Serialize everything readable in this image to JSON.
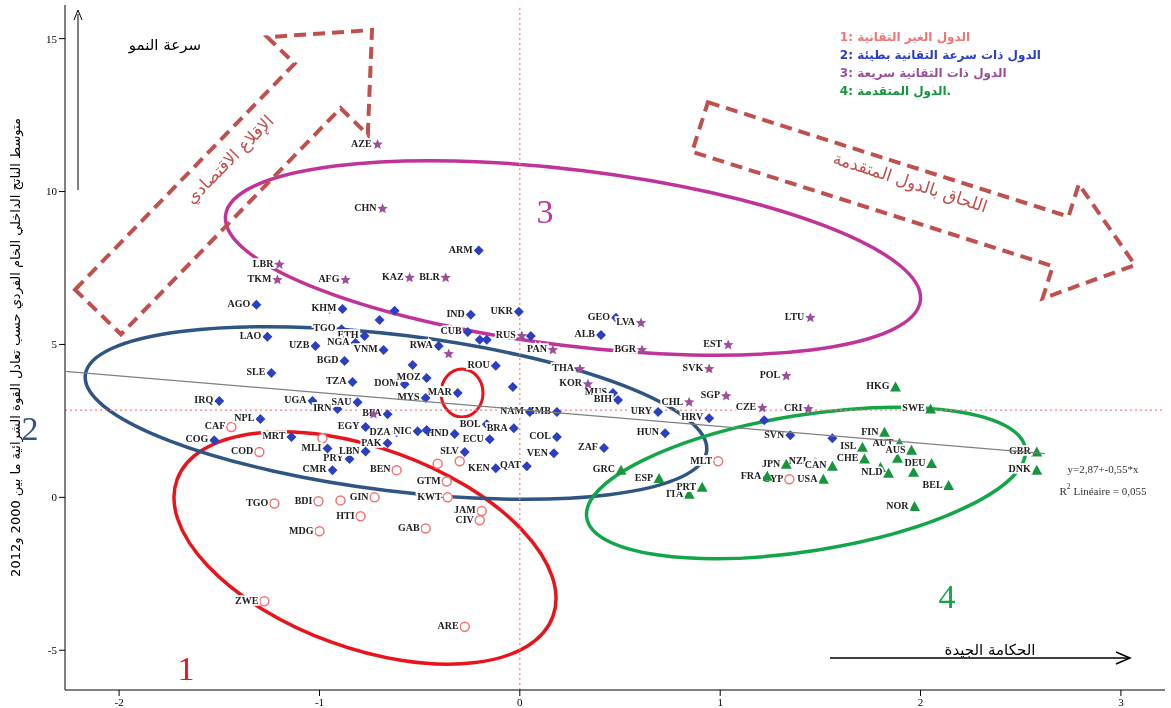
{
  "chart_data": {
    "type": "scatter",
    "ylabel": "متوسط الناتج الداخلي الخام الفردي حسب تعادل القوة الشرائية ما بين 2000 و2012",
    "xlim": [
      -2.27,
      3.22
    ],
    "ylim": [
      -6.3,
      16.1
    ],
    "xticks": [
      -2,
      -1,
      0,
      1,
      2,
      3
    ],
    "yticks": [
      -5,
      0,
      5,
      10,
      15
    ],
    "grid": false,
    "legend": "top right",
    "ref_lines": [
      {
        "axis": "x",
        "value": 0,
        "color": "#f08080",
        "line_style": "dotted"
      },
      {
        "axis": "y",
        "value": 2.85,
        "color": "#f08080",
        "line_style": "dotted"
      }
    ],
    "series": [
      {
        "name": "1: الدول الغير التقانية",
        "marker": "circle",
        "color": "#f07575",
        "x": [
          -1.275,
          -0.275,
          -0.2,
          -0.19,
          -0.795,
          -0.725,
          -0.895,
          -1.005,
          -1.225,
          -1.3,
          -1.44,
          -0.615,
          -0.365,
          -0.41,
          -0.3,
          0.99,
          1.345,
          -0.985,
          -0.47,
          -1.0,
          -0.36
        ],
        "values": [
          -3.4,
          -4.23,
          -0.75,
          -0.45,
          -0.62,
          0,
          -0.1,
          -0.13,
          -0.2,
          1.48,
          2.3,
          0.89,
          0.52,
          1.1,
          1.18,
          1.18,
          0.59,
          1.93,
          -1.02,
          -1.11,
          0
        ],
        "value_labels": [
          "ZWE",
          "ARE",
          "CIV",
          "JAM",
          "HTI",
          "GIN",
          null,
          "BDI",
          "TGO",
          "COD",
          "CAF",
          "BEN",
          "GTM",
          null,
          null,
          "MLT",
          "CYP",
          null,
          "GAB",
          "MDG",
          "KWT"
        ]
      },
      {
        "name": "2: الدول ذات سرعة التقانية بطيئة",
        "marker": "diamond",
        "color": "#2a40c0",
        "x": [
          -0.205,
          -1.315,
          -1.26,
          -1.24,
          -1.5,
          -1.035,
          -1.295,
          -1.525,
          -0.875,
          -0.835,
          -0.575,
          -0.89,
          -0.95,
          -0.885,
          -0.775,
          -0.7,
          -0.625,
          -0.465,
          -0.66,
          -0.615,
          -0.51,
          -0.46,
          -0.66,
          -0.325,
          -0.275,
          -0.935,
          -1.14,
          -0.26,
          -0.2,
          -0.165,
          -0.405,
          0.055,
          0.48,
          -0.535,
          -0.035,
          0.465,
          0.69,
          0.945,
          0.725,
          0.185,
          0.05,
          -0.31,
          -0.165,
          -0.03,
          0.185,
          -0.15,
          0.035,
          -0.465,
          1.35,
          1.56,
          1.22,
          -1.02,
          -0.82,
          -0.245,
          -0.005,
          -0.47,
          -0.91,
          -0.77,
          -0.12,
          0.17,
          0.42,
          0.49,
          0.405,
          -0.12,
          -0.85,
          -0.96,
          -0.77,
          -0.81,
          -0.68
        ],
        "values": [
          8.07,
          6.3,
          5.25,
          4.07,
          3.15,
          3.15,
          2.56,
          1.87,
          4.46,
          3.77,
          3.7,
          5.5,
          6.16,
          6.16,
          5.28,
          5.8,
          6.1,
          3.9,
          2.72,
          2.13,
          2.16,
          2.16,
          1.77,
          2.07,
          1.48,
          0.89,
          1.97,
          5.41,
          5.15,
          5.15,
          4.95,
          5.28,
          5.87,
          4.33,
          3.61,
          3.41,
          2.79,
          2.59,
          2.1,
          2.79,
          2.79,
          3.41,
          2.39,
          2.26,
          1.97,
          1.9,
          1.02,
          2.2,
          2.03,
          1.93,
          2.52,
          4.95,
          5.05,
          5.97,
          6.07,
          3.25,
          2.89,
          2.3,
          0.95,
          1.44,
          1.61,
          3.18,
          5.31,
          4.3,
          1.25,
          1.6,
          1.5,
          3.11,
          4.82
        ],
        "value_labels": [
          "ARM",
          "AGO",
          "LAO",
          "SLE",
          "IRQ",
          "UGA",
          "NPL",
          "COG",
          "BGD",
          "TZA",
          "DOM",
          "TGO",
          null,
          "KHM",
          "ETH",
          null,
          null,
          "MOZ",
          "BFA",
          "DZA",
          "NIC",
          null,
          "PAK",
          "HND",
          "SLV",
          "CMR",
          "MRT",
          "CUB",
          null,
          null,
          "RWA",
          null,
          "GEO",
          null,
          null,
          "MUS",
          "URY",
          "HRV",
          "HUN",
          "ZMB",
          "NAM",
          "MAR",
          "BOL",
          "BRA",
          "COL",
          "ECU",
          "QAT",
          null,
          "SVN",
          null,
          null,
          "UZB",
          "NGA",
          "IND",
          "UKR",
          "MYS",
          "IRN",
          "EGY",
          "KEN",
          "VEN",
          "ZAF",
          "BIH",
          "ALB",
          "ROU",
          "PRY",
          "MLI",
          "LBN",
          "SAU",
          "VNM"
        ]
      },
      {
        "name": "3: الدول ذات التقانية سريعة",
        "marker": "star",
        "color": "#9b4f9b",
        "x": [
          -0.71,
          -0.685,
          -1.21,
          -0.55,
          -0.37,
          0.605,
          1.45,
          1.04,
          0.165,
          0.61,
          0.945,
          0.01,
          -0.355,
          0.845,
          1.03,
          1.21,
          0.34,
          -0.73,
          -1.2,
          -0.87,
          1.33,
          1.44,
          0.3
        ],
        "values": [
          11.54,
          9.44,
          7.11,
          7.18,
          7.18,
          5.7,
          5.87,
          4.98,
          4.82,
          4.82,
          4.2,
          5.28,
          4.69,
          3.11,
          3.31,
          2.92,
          3.7,
          2.72,
          7.61,
          7.11,
          3.97,
          2.89,
          4.2
        ],
        "value_labels": [
          "AZE",
          "CHN",
          "TKM",
          "KAZ",
          "BLR",
          "LVA",
          "LTU",
          "EST",
          "PAN",
          "BGR",
          "SVK",
          "RUS",
          null,
          "CHL",
          "SGP",
          "CZE",
          "KOR",
          null,
          "LBR",
          "AFG",
          "POL",
          "CRI",
          "THA"
        ]
      },
      {
        "name": "4: الدول المتقدمة.",
        "marker": "triangle",
        "color": "#16963c",
        "x": [
          1.875,
          0.505,
          0.695,
          0.845,
          0.91,
          1.235,
          1.515,
          1.475,
          1.56,
          1.71,
          1.72,
          1.8,
          1.84,
          1.895,
          1.885,
          1.955,
          1.965,
          2.055,
          2.14,
          2.05,
          1.82,
          2.58,
          2.58,
          1.33,
          1.97
        ],
        "values": [
          3.61,
          0.89,
          0.62,
          0.1,
          0.33,
          0.69,
          0.59,
          1.15,
          1.02,
          1.64,
          1.25,
          0.98,
          0.79,
          1.77,
          1.28,
          1.54,
          0.82,
          1.11,
          0.39,
          2.89,
          2.13,
          1.48,
          0.89,
          1.08,
          -0.3
        ],
        "value_labels": [
          "HKG",
          "GRC",
          "ESP",
          "ITA",
          "PRT",
          "FRA",
          "USA",
          "NZL",
          "CAN",
          "ISL",
          "CHE",
          null,
          "NLD",
          "AUT",
          null,
          "AUS",
          null,
          "DEU",
          "BEL",
          "SWE",
          "FIN",
          "GBR",
          "DNK",
          "JPN",
          "NOR"
        ]
      },
      {
        "type": "line",
        "marker": "none",
        "color": "#7f7f7f",
        "x": [
          -2.27,
          2.62
        ],
        "values": [
          4.12,
          1.43
        ]
      }
    ],
    "annotations": [
      "سرعة النمو",
      "الحكامة الجيدة",
      "الإقلاع الاقتصادي",
      "اللحاق بالدول المتقدمة",
      "1",
      "2",
      "3",
      "4",
      "y=2,87+-0,55*x",
      "R$^{2}$ Linéaire = 0,055"
    ]
  }
}
